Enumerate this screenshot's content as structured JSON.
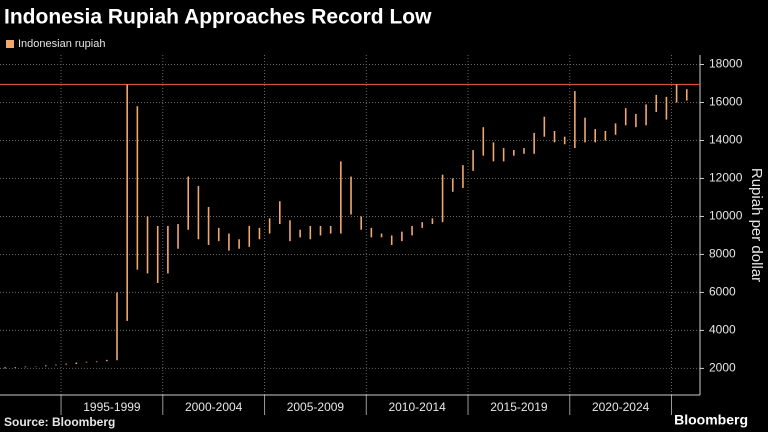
{
  "chart_data": {
    "type": "range",
    "title": "Indonesia Rupiah Approaches Record Low",
    "y_label": "Rupiah per dollar",
    "source": "Source: Bloomberg",
    "brand": "Bloomberg",
    "background": "#000000",
    "grid": true,
    "legend": "top-left",
    "xlim": [
      1992,
      2026.4
    ],
    "xticks": [
      1995,
      2000,
      2005,
      2010,
      2015,
      2020,
      2025
    ],
    "period_labels": [
      "1995-1999",
      "2000-2004",
      "2005-2009",
      "2010-2014",
      "2015-2019",
      "2020-2024"
    ],
    "ylim": [
      600,
      18500
    ],
    "yticks": [
      2000,
      4000,
      6000,
      8000,
      10000,
      12000,
      14000,
      16000,
      18000
    ],
    "reference_line": {
      "value": 16950,
      "color": "#d9533c"
    },
    "x": [
      1992.25,
      1992.75,
      1993.25,
      1993.75,
      1994.25,
      1994.75,
      1995.25,
      1995.75,
      1996.25,
      1996.75,
      1997.25,
      1997.75,
      1998.25,
      1998.75,
      1999.25,
      1999.75,
      2000.25,
      2000.75,
      2001.25,
      2001.75,
      2002.25,
      2002.75,
      2003.25,
      2003.75,
      2004.25,
      2004.75,
      2005.25,
      2005.75,
      2006.25,
      2006.75,
      2007.25,
      2007.75,
      2008.25,
      2008.75,
      2009.25,
      2009.75,
      2010.25,
      2010.75,
      2011.25,
      2011.75,
      2012.25,
      2012.75,
      2013.25,
      2013.75,
      2014.25,
      2014.75,
      2015.25,
      2015.75,
      2016.25,
      2016.75,
      2017.25,
      2017.75,
      2018.25,
      2018.75,
      2019.25,
      2019.75,
      2020.25,
      2020.75,
      2021.25,
      2021.75,
      2022.25,
      2022.75,
      2023.25,
      2023.75,
      2024.25,
      2024.75,
      2025.25,
      2025.75
    ],
    "series": [
      {
        "name": "Indonesian rupiah",
        "color": "#f0a86c",
        "low": [
          2000,
          2030,
          2060,
          2090,
          2110,
          2160,
          2200,
          2230,
          2310,
          2330,
          2380,
          2430,
          4500,
          7200,
          7000,
          6500,
          7000,
          8300,
          9300,
          8800,
          8500,
          8700,
          8200,
          8300,
          8400,
          8800,
          9100,
          9600,
          8700,
          8900,
          8800,
          9000,
          9100,
          9100,
          10100,
          9300,
          8900,
          8900,
          8500,
          8700,
          9000,
          9400,
          9600,
          9700,
          11300,
          11500,
          12400,
          13200,
          12900,
          12900,
          13200,
          13300,
          13300,
          14200,
          13900,
          13800,
          13600,
          13900,
          13900,
          14000,
          14300,
          14800,
          14700,
          14800,
          15500,
          15100,
          16000,
          16100
        ],
        "high": [
          2060,
          2070,
          2100,
          2110,
          2160,
          2200,
          2250,
          2310,
          2350,
          2370,
          2450,
          6000,
          16950,
          15800,
          10000,
          9500,
          9500,
          9600,
          12100,
          11600,
          10500,
          9400,
          9100,
          8800,
          9500,
          9400,
          9900,
          10800,
          9800,
          9300,
          9500,
          9500,
          9500,
          12900,
          12100,
          10000,
          9400,
          9100,
          9000,
          9200,
          9500,
          9700,
          9900,
          12200,
          12000,
          12700,
          13500,
          14700,
          13900,
          13600,
          13500,
          13600,
          14400,
          15250,
          14500,
          14200,
          16600,
          15200,
          14600,
          14500,
          14900,
          15700,
          15400,
          15900,
          16400,
          16300,
          16950,
          16700
        ]
      }
    ]
  }
}
